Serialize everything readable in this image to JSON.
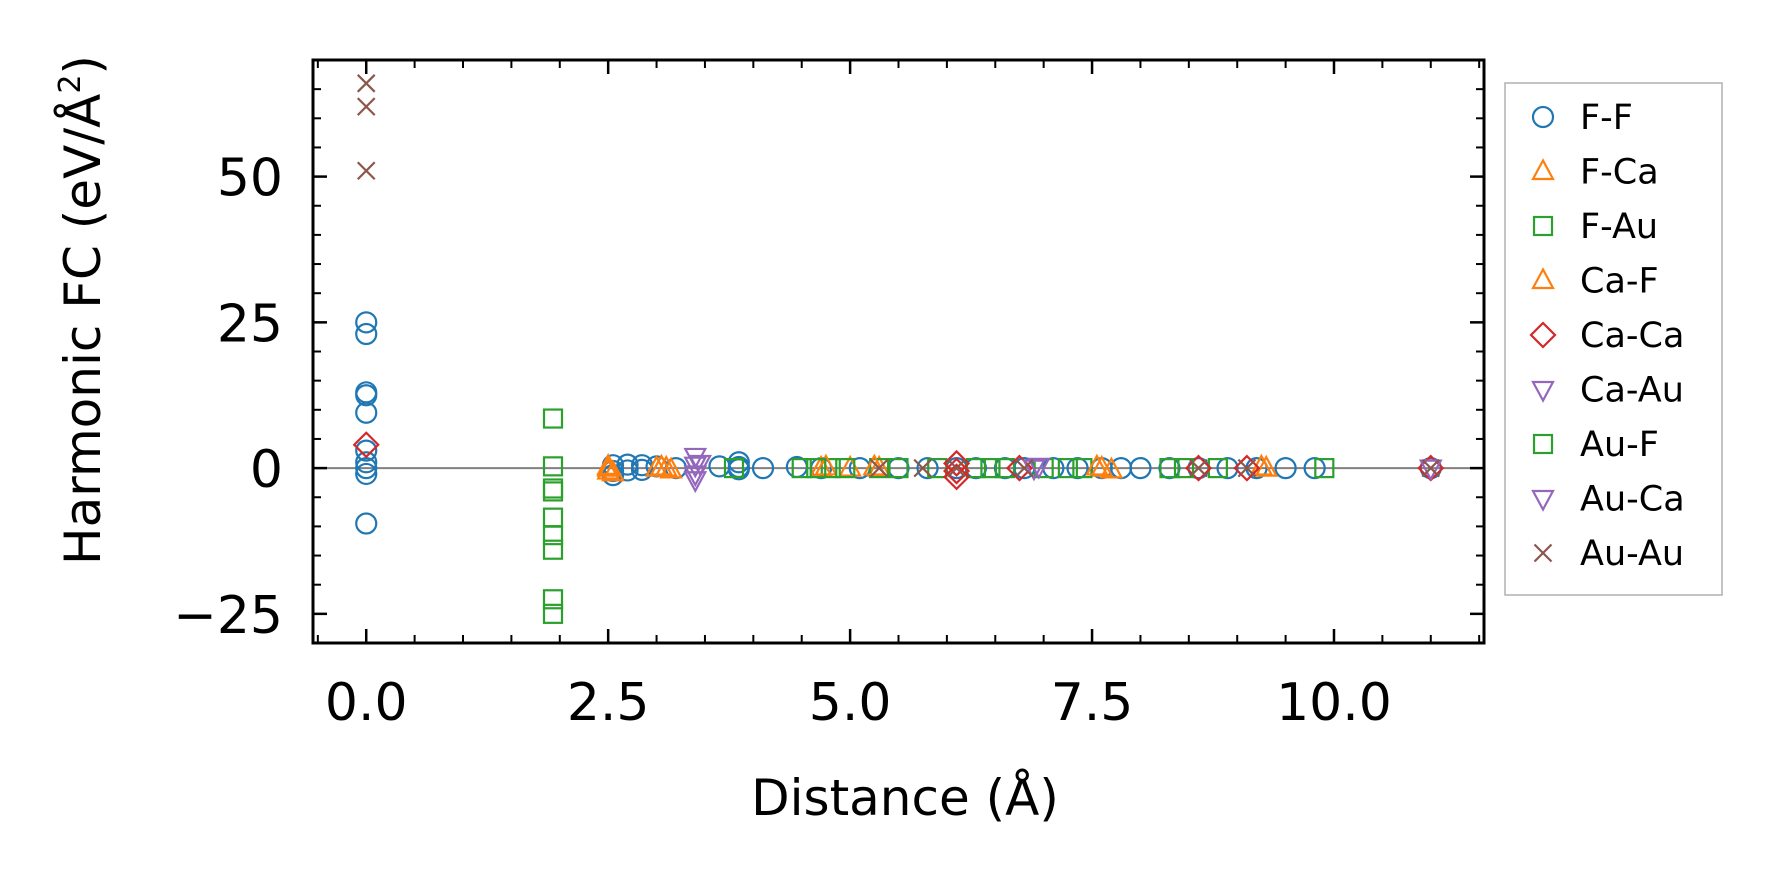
{
  "chart_data": {
    "type": "scatter",
    "xlabel": "Distance (Å)",
    "ylabel_main": "Harmonic FC (eV/Å",
    "ylabel_sup": "2",
    "ylabel_close": ")",
    "xlim": [
      -0.55,
      11.55
    ],
    "ylim": [
      -30,
      70
    ],
    "xticks": [
      0.0,
      2.5,
      5.0,
      7.5,
      10.0
    ],
    "xtick_labels": [
      "0.0",
      "2.5",
      "5.0",
      "7.5",
      "10.0"
    ],
    "yticks": [
      -25,
      0,
      25,
      50
    ],
    "ytick_labels": [
      "−25",
      "0",
      "25",
      "50"
    ],
    "zero_line": true,
    "grid": false,
    "legend_position": "outside-right",
    "series": [
      {
        "name": "F-F",
        "marker": "circle",
        "color": "#1f77b4",
        "points": [
          [
            0,
            25
          ],
          [
            0,
            23
          ],
          [
            0,
            13
          ],
          [
            0,
            12.5
          ],
          [
            0,
            9.5
          ],
          [
            0,
            3
          ],
          [
            0,
            1
          ],
          [
            0,
            0
          ],
          [
            0,
            -1
          ],
          [
            0,
            -9.5
          ],
          [
            2.55,
            0.5
          ],
          [
            2.55,
            -0.5
          ],
          [
            2.55,
            -1.2
          ],
          [
            2.7,
            0.6
          ],
          [
            2.7,
            -0.4
          ],
          [
            2.85,
            0.5
          ],
          [
            2.85,
            -0.3
          ],
          [
            3.0,
            0.3
          ],
          [
            3.2,
            0
          ],
          [
            3.65,
            0.3
          ],
          [
            3.85,
            1
          ],
          [
            3.85,
            0.2
          ],
          [
            3.85,
            -0.2
          ],
          [
            4.1,
            0
          ],
          [
            4.45,
            0.2
          ],
          [
            4.7,
            0
          ],
          [
            5.1,
            0
          ],
          [
            5.5,
            0
          ],
          [
            5.8,
            0
          ],
          [
            6.1,
            0
          ],
          [
            6.3,
            0
          ],
          [
            6.6,
            0
          ],
          [
            6.8,
            0
          ],
          [
            7.1,
            0
          ],
          [
            7.35,
            0
          ],
          [
            7.6,
            0
          ],
          [
            7.8,
            0
          ],
          [
            8.0,
            0
          ],
          [
            8.3,
            0
          ],
          [
            8.6,
            0
          ],
          [
            8.9,
            0
          ],
          [
            9.2,
            0
          ],
          [
            9.5,
            0
          ],
          [
            9.8,
            0
          ],
          [
            11.0,
            0
          ]
        ]
      },
      {
        "name": "F-Ca",
        "marker": "triangle-up",
        "color": "#ff7f0e",
        "points": [
          [
            2.5,
            0
          ],
          [
            2.5,
            -0.5
          ],
          [
            2.55,
            -0.8
          ],
          [
            3.0,
            0
          ],
          [
            3.1,
            0
          ],
          [
            3.15,
            -0.3
          ],
          [
            4.7,
            0
          ],
          [
            5.0,
            0
          ],
          [
            5.3,
            0
          ],
          [
            7.6,
            0
          ],
          [
            7.7,
            -0.3
          ],
          [
            9.3,
            0
          ]
        ]
      },
      {
        "name": "F-Au",
        "marker": "square",
        "color": "#2ca02c",
        "points": [
          [
            1.93,
            8.5
          ],
          [
            1.93,
            0.3
          ],
          [
            1.93,
            -3.5
          ],
          [
            1.93,
            -4
          ],
          [
            1.93,
            -8.5
          ],
          [
            1.93,
            -11.5
          ],
          [
            1.93,
            -14
          ],
          [
            1.93,
            -22.5
          ],
          [
            1.93,
            -25
          ],
          [
            3.8,
            0
          ],
          [
            4.5,
            0
          ],
          [
            4.8,
            0
          ],
          [
            5.3,
            0
          ],
          [
            5.5,
            0
          ],
          [
            5.9,
            0
          ],
          [
            6.3,
            0
          ],
          [
            6.6,
            0
          ],
          [
            7.0,
            0
          ],
          [
            7.4,
            0
          ],
          [
            8.3,
            0
          ],
          [
            8.8,
            0
          ],
          [
            9.9,
            0
          ]
        ]
      },
      {
        "name": "Ca-F",
        "marker": "triangle-up",
        "color": "#ff7f0e",
        "points": [
          [
            2.5,
            0.3
          ],
          [
            3.05,
            0.2
          ],
          [
            4.75,
            0.2
          ],
          [
            5.25,
            0.2
          ],
          [
            7.55,
            0.2
          ],
          [
            9.25,
            0.2
          ]
        ]
      },
      {
        "name": "Ca-Ca",
        "marker": "diamond",
        "color": "#d62728",
        "points": [
          [
            0,
            4
          ],
          [
            6.1,
            0.8
          ],
          [
            6.1,
            -0.5
          ],
          [
            6.1,
            -1.5
          ],
          [
            6.75,
            0
          ],
          [
            8.6,
            0
          ],
          [
            9.1,
            0
          ],
          [
            11.0,
            0
          ]
        ]
      },
      {
        "name": "Ca-Au",
        "marker": "triangle-down",
        "color": "#9467bd",
        "points": [
          [
            3.4,
            2
          ],
          [
            3.4,
            0.5
          ],
          [
            3.4,
            -1
          ],
          [
            3.4,
            -2
          ],
          [
            6.9,
            0
          ],
          [
            11.0,
            0
          ]
        ]
      },
      {
        "name": "Au-F",
        "marker": "square",
        "color": "#2ca02c",
        "points": [
          [
            4.65,
            0
          ],
          [
            4.95,
            0
          ],
          [
            6.45,
            0
          ],
          [
            7.25,
            0
          ],
          [
            8.45,
            0
          ]
        ]
      },
      {
        "name": "Au-Ca",
        "marker": "triangle-down",
        "color": "#9467bd",
        "points": [
          [
            3.45,
            0.8
          ],
          [
            6.95,
            0.3
          ]
        ]
      },
      {
        "name": "Au-Au",
        "marker": "x",
        "color": "#8c564b",
        "points": [
          [
            0,
            66
          ],
          [
            0,
            62
          ],
          [
            0,
            51
          ],
          [
            5.3,
            0
          ],
          [
            5.75,
            0
          ],
          [
            6.1,
            0
          ],
          [
            6.8,
            0
          ],
          [
            8.6,
            0
          ],
          [
            9.1,
            0
          ],
          [
            11.0,
            0
          ]
        ]
      }
    ]
  }
}
